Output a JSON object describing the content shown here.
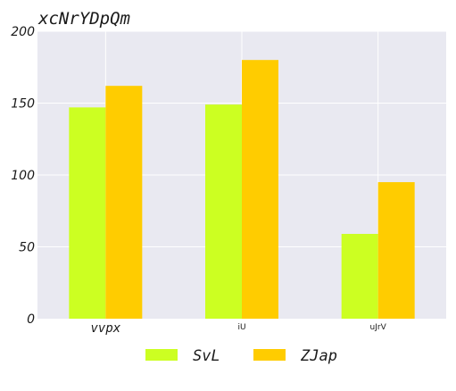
{
  "chart_data": {
    "type": "bar",
    "title": "xcNrYDpQm",
    "xlabel": "",
    "ylabel": "",
    "categories": [
      "vvpx",
      "iU",
      "uJrV"
    ],
    "series": [
      {
        "name": "SvL",
        "values": [
          147,
          149,
          59
        ],
        "color": "#ccff22"
      },
      {
        "name": "ZJap",
        "values": [
          162,
          180,
          95
        ],
        "color": "#ffcc00"
      }
    ],
    "ylim": [
      0,
      200
    ],
    "yticks": [
      0,
      50,
      100,
      150,
      200
    ],
    "grid": true,
    "legend_position": "bottom-center",
    "background_color": "#e9e9f1",
    "grid_color": "#ffffff"
  }
}
